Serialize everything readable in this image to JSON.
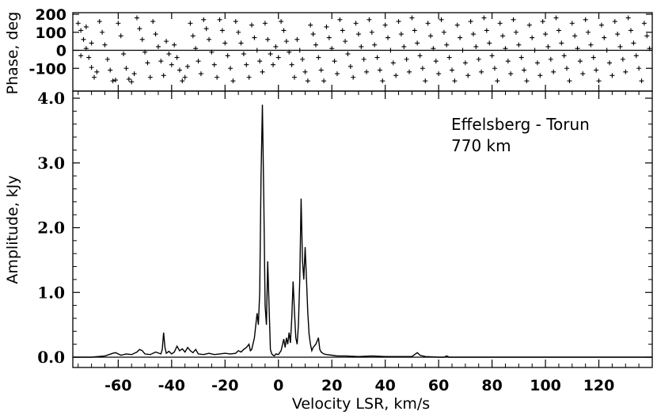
{
  "chart_data": [
    {
      "type": "scatter",
      "panel": "phase",
      "ylabel": "Phase, deg",
      "xlim": [
        -77,
        140
      ],
      "ylim": [
        -200,
        200
      ],
      "y_ticks": [
        200,
        100,
        0,
        -100
      ],
      "y_tick_labels": [
        "200",
        "100",
        "0",
        "-100"
      ],
      "zero_line": true,
      "marker": "+",
      "series": [
        {
          "points": [
            [
              -75,
              150
            ],
            [
              -74,
              110
            ],
            [
              -73,
              60
            ],
            [
              -72,
              10
            ],
            [
              -71,
              -40
            ],
            [
              -70,
              -95
            ],
            [
              -69,
              -150
            ],
            [
              -74,
              -30
            ],
            [
              -72,
              130
            ],
            [
              -70,
              40
            ],
            [
              -68,
              -120
            ],
            [
              -67,
              160
            ],
            [
              -66,
              100
            ],
            [
              -65,
              30
            ],
            [
              -64,
              -50
            ],
            [
              -63,
              -110
            ],
            [
              -62,
              -170
            ],
            [
              -61,
              -165
            ],
            [
              -60,
              150
            ],
            [
              -59,
              80
            ],
            [
              -58,
              -20
            ],
            [
              -57,
              -100
            ],
            [
              -56,
              -160
            ],
            [
              -55,
              -175
            ],
            [
              -54,
              -130
            ],
            [
              -53,
              180
            ],
            [
              -52,
              120
            ],
            [
              -51,
              60
            ],
            [
              -50,
              -10
            ],
            [
              -49,
              -70
            ],
            [
              -48,
              -150
            ],
            [
              -47,
              160
            ],
            [
              -46,
              90
            ],
            [
              -45,
              20
            ],
            [
              -44,
              -60
            ],
            [
              -43,
              -140
            ],
            [
              -42,
              50
            ],
            [
              -41,
              -20
            ],
            [
              -40,
              -80
            ],
            [
              -39,
              30
            ],
            [
              -38,
              -40
            ],
            [
              -37,
              -110
            ],
            [
              -36,
              -170
            ],
            [
              -35,
              -150
            ],
            [
              -34,
              -90
            ],
            [
              -33,
              150
            ],
            [
              -32,
              80
            ],
            [
              -31,
              10
            ],
            [
              -30,
              -60
            ],
            [
              -29,
              -130
            ],
            [
              -28,
              170
            ],
            [
              -27,
              120
            ],
            [
              -26,
              60
            ],
            [
              -25,
              -10
            ],
            [
              -24,
              -80
            ],
            [
              -23,
              -150
            ],
            [
              -22,
              170
            ],
            [
              -21,
              110
            ],
            [
              -20,
              40
            ],
            [
              -19,
              -30
            ],
            [
              -18,
              -100
            ],
            [
              -17,
              -170
            ],
            [
              -16,
              160
            ],
            [
              -15,
              100
            ],
            [
              -14,
              40
            ],
            [
              -13,
              -20
            ],
            [
              -12,
              -80
            ],
            [
              -11,
              -150
            ],
            [
              -10,
              140
            ],
            [
              -9,
              70
            ],
            [
              -8,
              0
            ],
            [
              -7,
              -60
            ],
            [
              -6,
              -120
            ],
            [
              -5,
              150
            ],
            [
              -4,
              60
            ],
            [
              -3,
              -20
            ],
            [
              -2,
              -80
            ],
            [
              -1,
              20
            ],
            [
              0,
              -40
            ],
            [
              1,
              160
            ],
            [
              2,
              110
            ],
            [
              3,
              50
            ],
            [
              4,
              -10
            ],
            [
              5,
              -80
            ],
            [
              6,
              -150
            ],
            [
              7,
              60
            ],
            [
              8,
              0
            ],
            [
              9,
              -50
            ],
            [
              10,
              -120
            ],
            [
              11,
              -170
            ],
            [
              12,
              140
            ],
            [
              13,
              90
            ],
            [
              14,
              30
            ],
            [
              15,
              -40
            ],
            [
              16,
              -110
            ],
            [
              17,
              -170
            ],
            [
              18,
              130
            ],
            [
              19,
              70
            ],
            [
              20,
              10
            ],
            [
              21,
              -60
            ],
            [
              22,
              -130
            ],
            [
              23,
              170
            ],
            [
              24,
              110
            ],
            [
              25,
              50
            ],
            [
              26,
              -20
            ],
            [
              27,
              -90
            ],
            [
              28,
              -150
            ],
            [
              29,
              150
            ],
            [
              30,
              90
            ],
            [
              31,
              20
            ],
            [
              32,
              -50
            ],
            [
              33,
              -120
            ],
            [
              34,
              170
            ],
            [
              35,
              100
            ],
            [
              36,
              30
            ],
            [
              37,
              -40
            ],
            [
              38,
              -110
            ],
            [
              39,
              -170
            ],
            [
              40,
              140
            ],
            [
              41,
              70
            ],
            [
              42,
              0
            ],
            [
              43,
              -70
            ],
            [
              44,
              -140
            ],
            [
              45,
              160
            ],
            [
              46,
              90
            ],
            [
              47,
              20
            ],
            [
              48,
              -50
            ],
            [
              49,
              -120
            ],
            [
              50,
              180
            ],
            [
              51,
              110
            ],
            [
              52,
              40
            ],
            [
              53,
              -30
            ],
            [
              54,
              -100
            ],
            [
              55,
              -170
            ],
            [
              56,
              150
            ],
            [
              57,
              80
            ],
            [
              58,
              10
            ],
            [
              59,
              -60
            ],
            [
              60,
              -130
            ],
            [
              61,
              170
            ],
            [
              62,
              100
            ],
            [
              63,
              30
            ],
            [
              64,
              -40
            ],
            [
              65,
              -110
            ],
            [
              66,
              -170
            ],
            [
              67,
              140
            ],
            [
              68,
              70
            ],
            [
              69,
              0
            ],
            [
              70,
              -70
            ],
            [
              71,
              -140
            ],
            [
              72,
              160
            ],
            [
              73,
              90
            ],
            [
              74,
              20
            ],
            [
              75,
              -50
            ],
            [
              76,
              -120
            ],
            [
              77,
              180
            ],
            [
              78,
              110
            ],
            [
              79,
              40
            ],
            [
              80,
              -30
            ],
            [
              81,
              -100
            ],
            [
              82,
              -170
            ],
            [
              83,
              150
            ],
            [
              84,
              80
            ],
            [
              85,
              10
            ],
            [
              86,
              -60
            ],
            [
              87,
              -130
            ],
            [
              88,
              170
            ],
            [
              89,
              100
            ],
            [
              90,
              30
            ],
            [
              91,
              -40
            ],
            [
              92,
              -110
            ],
            [
              93,
              -170
            ],
            [
              94,
              140
            ],
            [
              95,
              70
            ],
            [
              96,
              0
            ],
            [
              97,
              -70
            ],
            [
              98,
              -140
            ],
            [
              99,
              160
            ],
            [
              100,
              90
            ],
            [
              101,
              20
            ],
            [
              102,
              -50
            ],
            [
              103,
              -120
            ],
            [
              104,
              180
            ],
            [
              105,
              110
            ],
            [
              106,
              40
            ],
            [
              107,
              -30
            ],
            [
              108,
              -100
            ],
            [
              109,
              -170
            ],
            [
              110,
              150
            ],
            [
              111,
              80
            ],
            [
              112,
              10
            ],
            [
              113,
              -60
            ],
            [
              114,
              -130
            ],
            [
              115,
              170
            ],
            [
              116,
              100
            ],
            [
              117,
              30
            ],
            [
              118,
              -40
            ],
            [
              119,
              -110
            ],
            [
              120,
              -170
            ],
            [
              121,
              140
            ],
            [
              122,
              70
            ],
            [
              123,
              0
            ],
            [
              124,
              -70
            ],
            [
              125,
              -140
            ],
            [
              126,
              160
            ],
            [
              127,
              90
            ],
            [
              128,
              20
            ],
            [
              129,
              -50
            ],
            [
              130,
              -120
            ],
            [
              131,
              180
            ],
            [
              132,
              110
            ],
            [
              133,
              40
            ],
            [
              134,
              -30
            ],
            [
              135,
              -100
            ],
            [
              136,
              -170
            ],
            [
              137,
              150
            ],
            [
              138,
              80
            ],
            [
              139,
              10
            ]
          ]
        }
      ]
    },
    {
      "type": "line",
      "panel": "amplitude",
      "xlabel": "Velocity LSR, km/s",
      "ylabel": "Amplitude, kJy",
      "xlim": [
        -77,
        140
      ],
      "ylim": [
        -0.15,
        4.0
      ],
      "x_ticks": [
        -60,
        -40,
        -20,
        0,
        20,
        40,
        60,
        80,
        100,
        120
      ],
      "x_tick_labels": [
        "-60",
        "-40",
        "-20",
        "0",
        "20",
        "40",
        "60",
        "80",
        "100",
        "120"
      ],
      "y_ticks": [
        0.0,
        1.0,
        2.0,
        3.0,
        4.0
      ],
      "y_tick_labels": [
        "0.0",
        "1.0",
        "2.0",
        "3.0",
        "4.0"
      ],
      "series": [
        {
          "x": [
            -77,
            -70,
            -65,
            -62,
            -61,
            -60,
            -59,
            -57,
            -55,
            -53,
            -52,
            -51,
            -50,
            -48,
            -46,
            -44,
            -43.5,
            -43,
            -42.5,
            -42,
            -41,
            -40,
            -39,
            -38,
            -37,
            -36,
            -35,
            -34,
            -33,
            -32,
            -31,
            -30,
            -28,
            -26,
            -24,
            -22,
            -20,
            -18,
            -16,
            -15,
            -14,
            -13,
            -12,
            -11,
            -10.5,
            -10,
            -9,
            -8,
            -7.5,
            -7,
            -6.5,
            -6,
            -5.5,
            -5,
            -4.5,
            -4,
            -3.5,
            -3,
            -2.5,
            -2,
            -1.5,
            -1,
            0,
            1,
            2,
            2.5,
            3,
            3.5,
            4,
            4.5,
            5,
            5.5,
            6,
            6.5,
            7,
            7.5,
            8,
            8.5,
            9,
            9.5,
            10,
            10.5,
            11,
            11.5,
            12,
            12.5,
            13,
            14,
            15,
            15.5,
            16,
            17,
            18,
            20,
            22,
            25,
            30,
            35,
            40,
            45,
            50,
            51,
            52,
            53,
            55,
            60,
            62,
            63,
            64,
            65,
            70,
            80,
            90,
            100,
            110,
            120,
            130,
            140
          ],
          "y": [
            0.0,
            0.0,
            0.02,
            0.06,
            0.07,
            0.05,
            0.03,
            0.05,
            0.04,
            0.08,
            0.12,
            0.1,
            0.05,
            0.04,
            0.08,
            0.05,
            0.12,
            0.38,
            0.15,
            0.06,
            0.09,
            0.05,
            0.08,
            0.17,
            0.1,
            0.13,
            0.08,
            0.15,
            0.1,
            0.07,
            0.12,
            0.05,
            0.04,
            0.06,
            0.04,
            0.05,
            0.06,
            0.05,
            0.06,
            0.1,
            0.08,
            0.12,
            0.15,
            0.2,
            0.1,
            0.12,
            0.3,
            0.68,
            0.5,
            1.0,
            2.8,
            3.9,
            2.5,
            0.8,
            0.5,
            1.48,
            0.8,
            0.12,
            0.05,
            0.03,
            0.02,
            0.05,
            0.04,
            0.1,
            0.28,
            0.15,
            0.3,
            0.2,
            0.38,
            0.22,
            0.6,
            1.17,
            0.7,
            0.3,
            0.2,
            0.5,
            1.2,
            2.45,
            1.5,
            1.2,
            1.7,
            1.2,
            0.7,
            0.35,
            0.2,
            0.1,
            0.15,
            0.2,
            0.3,
            0.12,
            0.08,
            0.05,
            0.04,
            0.03,
            0.02,
            0.02,
            0.01,
            0.02,
            0.01,
            0.01,
            0.01,
            0.04,
            0.07,
            0.03,
            0.01,
            0.0,
            0.0,
            0.02,
            0.0,
            0.0,
            0.0,
            0.0,
            0.0,
            0.0,
            0.0,
            0.0,
            0.0,
            0.0
          ]
        }
      ],
      "annotations": [
        "Effelsberg - Torun",
        "770 km"
      ]
    }
  ]
}
